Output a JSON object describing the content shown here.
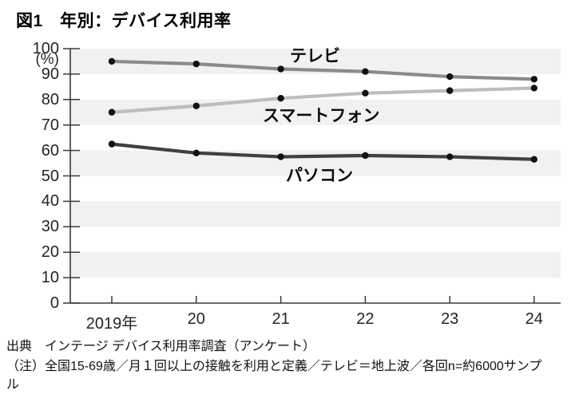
{
  "title": "図1　年別：デバイス利用率",
  "chart_data": {
    "type": "line",
    "categories": [
      "2019年",
      "20",
      "21",
      "22",
      "23",
      "24"
    ],
    "series": [
      {
        "key": "tv",
        "name": "テレビ",
        "color": "#8b8b8b",
        "values": [
          95,
          94,
          92,
          91,
          89,
          88
        ]
      },
      {
        "key": "smartphone",
        "name": "スマートフォン",
        "color": "#bdbdbd",
        "values": [
          75,
          77.5,
          80.5,
          82.5,
          83.5,
          84.5
        ]
      },
      {
        "key": "pc",
        "name": "パソコン",
        "color": "#404040",
        "values": [
          62.5,
          59,
          57.5,
          58,
          57.5,
          56.5
        ]
      }
    ],
    "y_unit_label": "(%)",
    "ylim": [
      0,
      100
    ],
    "ytick_step": 10,
    "xlabel": "",
    "ylabel": "",
    "grid": "alternating horizontal bands",
    "legend_position": "inline labels on plot",
    "band_color": "#f1f1f1",
    "axis_color": "#3a3a3a",
    "point_color": "#111111"
  },
  "footer": {
    "source_line": "出典　インテージ デバイス利用率調査（アンケート）",
    "note_line": "（注）全国15-69歳／月１回以上の接触を利用と定義／テレビ＝地上波／各回n=約6000サンプル"
  }
}
